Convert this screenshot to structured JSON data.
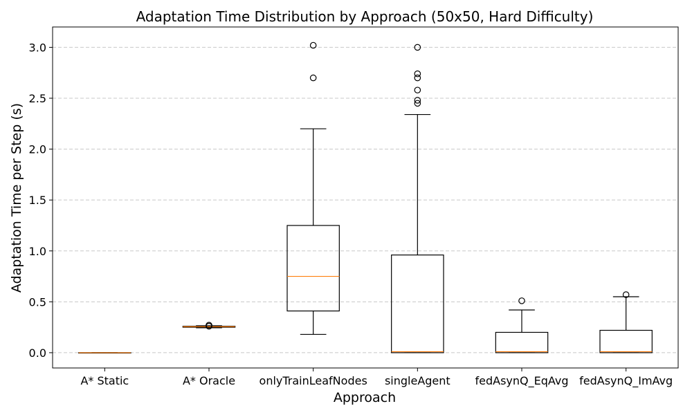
{
  "chart_data": {
    "type": "box",
    "title": "Adaptation Time Distribution by Approach (50x50, Hard Difficulty)",
    "xlabel": "Approach",
    "ylabel": "Adaptation Time per Step (s)",
    "ylim": [
      -0.15,
      3.2
    ],
    "yticks": [
      0.0,
      0.5,
      1.0,
      1.5,
      2.0,
      2.5,
      3.0
    ],
    "ytick_labels": [
      "0.0",
      "0.5",
      "1.0",
      "1.5",
      "2.0",
      "2.5",
      "3.0"
    ],
    "grid": "y-dashed",
    "categories": [
      "A* Static",
      "A* Oracle",
      "onlyTrainLeafNodes",
      "singleAgent",
      "fedAsynQ_EqAvg",
      "fedAsynQ_ImAvg"
    ],
    "boxes": [
      {
        "whisker_low": 0.0,
        "q1": 0.0,
        "median": 0.0,
        "q3": 0.0,
        "whisker_high": 0.0,
        "outliers": []
      },
      {
        "whisker_low": 0.245,
        "q1": 0.25,
        "median": 0.255,
        "q3": 0.26,
        "whisker_high": 0.265,
        "outliers": [
          0.26,
          0.27
        ]
      },
      {
        "whisker_low": 0.18,
        "q1": 0.41,
        "median": 0.75,
        "q3": 1.25,
        "whisker_high": 2.2,
        "outliers": [
          2.7,
          3.02
        ]
      },
      {
        "whisker_low": 0.0,
        "q1": 0.0,
        "median": 0.01,
        "q3": 0.96,
        "whisker_high": 2.34,
        "outliers": [
          2.45,
          2.48,
          2.58,
          2.7,
          2.74,
          3.0
        ]
      },
      {
        "whisker_low": 0.0,
        "q1": 0.0,
        "median": 0.01,
        "q3": 0.2,
        "whisker_high": 0.42,
        "outliers": [
          0.51
        ]
      },
      {
        "whisker_low": 0.0,
        "q1": 0.0,
        "median": 0.01,
        "q3": 0.22,
        "whisker_high": 0.55,
        "outliers": [
          0.57
        ]
      }
    ],
    "colors": {
      "box": "#000000",
      "median": "#ff7f0e",
      "grid": "#c8c8c8"
    }
  }
}
